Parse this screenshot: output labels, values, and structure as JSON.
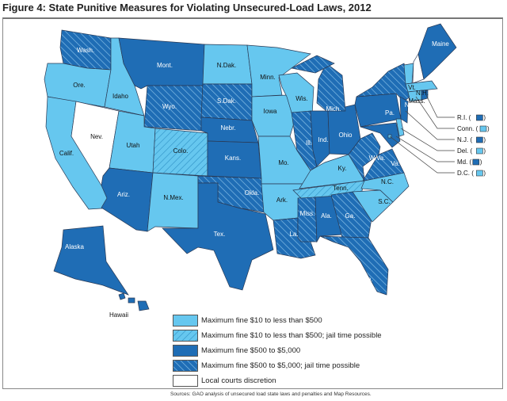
{
  "title": "Figure 4: State Punitive Measures for Violating Unsecured-Load Laws, 2012",
  "source": "Sources: GAO analysis of unsecured load state laws and penalties and Map Resources.",
  "colors": {
    "light": "#66c7ef",
    "dark": "#1f6db5",
    "hatch_line": "#c8e6f7",
    "none": "#ffffff",
    "border": "#2a3a55"
  },
  "legend": [
    {
      "key": "A",
      "label": "Maximum fine $10 to less than $500",
      "style": "light"
    },
    {
      "key": "B",
      "label": "Maximum fine $10 to less than $500; jail time possible",
      "style": "light-hatched"
    },
    {
      "key": "C",
      "label": "Maximum fine $500 to $5,000",
      "style": "dark"
    },
    {
      "key": "D",
      "label": "Maximum fine $500 to $5,000; jail time possible",
      "style": "dark-hatched"
    },
    {
      "key": "E",
      "label": "Local courts discretion",
      "style": "white"
    }
  ],
  "states": {
    "Wash": {
      "label": "Wash.",
      "cat": "D"
    },
    "Ore": {
      "label": "Ore.",
      "cat": "A"
    },
    "Calif": {
      "label": "Calif.",
      "cat": "A"
    },
    "Nev": {
      "label": "Nev.",
      "cat": "E"
    },
    "Idaho": {
      "label": "Idaho",
      "cat": "A"
    },
    "Mont": {
      "label": "Mont.",
      "cat": "C"
    },
    "Wyo": {
      "label": "Wyo.",
      "cat": "D"
    },
    "Utah": {
      "label": "Utah",
      "cat": "A"
    },
    "Colo": {
      "label": "Colo.",
      "cat": "B"
    },
    "Ariz": {
      "label": "Ariz.",
      "cat": "C"
    },
    "NMex": {
      "label": "N.Mex.",
      "cat": "A"
    },
    "NDak": {
      "label": "N.Dak.",
      "cat": "A"
    },
    "SDak": {
      "label": "S.Dak.",
      "cat": "D"
    },
    "Nebr": {
      "label": "Nebr.",
      "cat": "C"
    },
    "Kans": {
      "label": "Kans.",
      "cat": "C"
    },
    "Okla": {
      "label": "Okla.",
      "cat": "D"
    },
    "Tex": {
      "label": "Tex.",
      "cat": "C"
    },
    "Minn": {
      "label": "Minn.",
      "cat": "A"
    },
    "Iowa": {
      "label": "Iowa",
      "cat": "A"
    },
    "Wis": {
      "label": "Wis.",
      "cat": "A"
    },
    "Mo": {
      "label": "Mo.",
      "cat": "A"
    },
    "Ark": {
      "label": "Ark.",
      "cat": "A"
    },
    "La": {
      "label": "La.",
      "cat": "D"
    },
    "Miss": {
      "label": "Miss.",
      "cat": "D"
    },
    "Ala": {
      "label": "Ala.",
      "cat": "C"
    },
    "Tenn": {
      "label": "Tenn.",
      "cat": "B"
    },
    "Ky": {
      "label": "Ky.",
      "cat": "A"
    },
    "Ill": {
      "label": "Ill.",
      "cat": "D"
    },
    "Ind": {
      "label": "Ind.",
      "cat": "C"
    },
    "Ohio": {
      "label": "Ohio",
      "cat": "C"
    },
    "Mich": {
      "label": "Mich.",
      "cat": "D"
    },
    "Ga": {
      "label": "Ga.",
      "cat": "D"
    },
    "Fla": {
      "label": "Fla.",
      "cat": "D"
    },
    "SC": {
      "label": "S.C.",
      "cat": "A"
    },
    "NC": {
      "label": "N.C.",
      "cat": "A"
    },
    "Va": {
      "label": "Va.",
      "cat": "D"
    },
    "WVa": {
      "label": "W.Va.",
      "cat": "D"
    },
    "Pa": {
      "label": "Pa.",
      "cat": "C"
    },
    "NY": {
      "label": "N.Y.",
      "cat": "D"
    },
    "Md": {
      "label": "Md.",
      "cat": "C"
    },
    "Del": {
      "label": "Del.",
      "cat": "A"
    },
    "NJ": {
      "label": "N.J.",
      "cat": "C"
    },
    "Vt": {
      "label": "Vt.",
      "cat": "A"
    },
    "NH": {
      "label": "N.H.",
      "cat": "E"
    },
    "Maine": {
      "label": "Maine",
      "cat": "C"
    },
    "Mass": {
      "label": "Mass.",
      "cat": "A"
    },
    "Conn": {
      "label": "Conn.",
      "cat": "A"
    },
    "RI": {
      "label": "R.I.",
      "cat": "C"
    },
    "DC": {
      "label": "D.C.",
      "cat": "A"
    },
    "Alaska": {
      "label": "Alaska",
      "cat": "C"
    },
    "Hawaii": {
      "label": "Hawaii",
      "cat": "C"
    }
  },
  "callouts": [
    "RI",
    "Conn",
    "NJ",
    "Del",
    "Md",
    "DC"
  ]
}
